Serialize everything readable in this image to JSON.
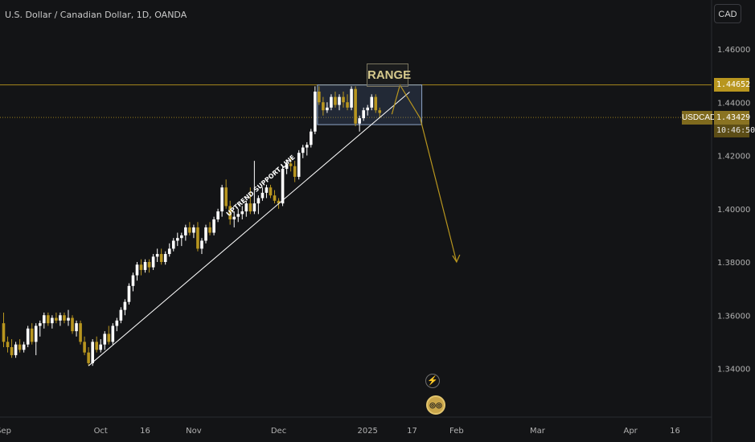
{
  "header": {
    "title": "U.S. Dollar / Canadian Dollar, 1D, OANDA",
    "currency": "CAD"
  },
  "price_labels": {
    "range_top": "1.44652",
    "symbol": "USDCAD",
    "last": "1.43429",
    "countdown": "10:46:50"
  },
  "annotations": {
    "range": "RANGE",
    "support": "UPTREND SUPPORT LINE",
    "event_icon": "lightning-icon",
    "event2_icon": "coins-icon"
  },
  "colors": {
    "background": "#131416",
    "up": "#ffffff",
    "down": "#b8961f",
    "accent": "#b8961f",
    "support_line": "#ffffff",
    "range_box": "#8fa6c8"
  },
  "chart_data": {
    "type": "candlestick",
    "title": "U.S. Dollar / Canadian Dollar, 1D, OANDA",
    "y_ticks": [
      1.34,
      1.36,
      1.38,
      1.4,
      1.42,
      1.44,
      1.46
    ],
    "y_tick_labels": [
      "1.34000",
      "1.36000",
      "1.38000",
      "1.40000",
      "1.42000",
      "1.44000",
      "1.46000"
    ],
    "ylim": [
      1.3225,
      1.478
    ],
    "x_ticks": [
      {
        "label": "Sep",
        "bar": 0
      },
      {
        "label": "Oct",
        "bar": 24
      },
      {
        "label": "16",
        "bar": 35
      },
      {
        "label": "Nov",
        "bar": 47
      },
      {
        "label": "Dec",
        "bar": 68
      },
      {
        "label": "2025",
        "bar": 90
      },
      {
        "label": "17",
        "bar": 101
      },
      {
        "label": "Feb",
        "bar": 112
      },
      {
        "label": "Mar",
        "bar": 132
      },
      {
        "label": "Apr",
        "bar": 155
      },
      {
        "label": "16",
        "bar": 166
      }
    ],
    "candles": [
      [
        1.357,
        1.361,
        1.348,
        1.35
      ],
      [
        1.35,
        1.352,
        1.346,
        1.348
      ],
      [
        1.348,
        1.351,
        1.344,
        1.345
      ],
      [
        1.345,
        1.35,
        1.344,
        1.349
      ],
      [
        1.349,
        1.351,
        1.346,
        1.347
      ],
      [
        1.347,
        1.35,
        1.346,
        1.349
      ],
      [
        1.349,
        1.356,
        1.348,
        1.355
      ],
      [
        1.355,
        1.357,
        1.349,
        1.35
      ],
      [
        1.35,
        1.357,
        1.345,
        1.356
      ],
      [
        1.356,
        1.358,
        1.352,
        1.357
      ],
      [
        1.357,
        1.361,
        1.355,
        1.36
      ],
      [
        1.36,
        1.361,
        1.356,
        1.357
      ],
      [
        1.357,
        1.36,
        1.355,
        1.359
      ],
      [
        1.359,
        1.361,
        1.357,
        1.358
      ],
      [
        1.358,
        1.361,
        1.356,
        1.36
      ],
      [
        1.36,
        1.361,
        1.357,
        1.358
      ],
      [
        1.358,
        1.362,
        1.356,
        1.359
      ],
      [
        1.359,
        1.36,
        1.353,
        1.354
      ],
      [
        1.354,
        1.358,
        1.352,
        1.357
      ],
      [
        1.357,
        1.358,
        1.349,
        1.35
      ],
      [
        1.35,
        1.352,
        1.345,
        1.346
      ],
      [
        1.346,
        1.348,
        1.341,
        1.342
      ],
      [
        1.342,
        1.351,
        1.341,
        1.35
      ],
      [
        1.35,
        1.352,
        1.346,
        1.347
      ],
      [
        1.347,
        1.351,
        1.346,
        1.349
      ],
      [
        1.349,
        1.354,
        1.347,
        1.353
      ],
      [
        1.353,
        1.356,
        1.349,
        1.35
      ],
      [
        1.35,
        1.357,
        1.349,
        1.356
      ],
      [
        1.356,
        1.359,
        1.354,
        1.358
      ],
      [
        1.358,
        1.363,
        1.357,
        1.362
      ],
      [
        1.362,
        1.366,
        1.36,
        1.365
      ],
      [
        1.365,
        1.372,
        1.364,
        1.371
      ],
      [
        1.371,
        1.376,
        1.369,
        1.375
      ],
      [
        1.375,
        1.38,
        1.373,
        1.379
      ],
      [
        1.379,
        1.381,
        1.375,
        1.377
      ],
      [
        1.377,
        1.381,
        1.376,
        1.38
      ],
      [
        1.38,
        1.381,
        1.376,
        1.378
      ],
      [
        1.378,
        1.383,
        1.377,
        1.382
      ],
      [
        1.382,
        1.385,
        1.38,
        1.383
      ],
      [
        1.383,
        1.385,
        1.379,
        1.38
      ],
      [
        1.38,
        1.384,
        1.379,
        1.383
      ],
      [
        1.383,
        1.387,
        1.382,
        1.385
      ],
      [
        1.385,
        1.389,
        1.384,
        1.388
      ],
      [
        1.388,
        1.391,
        1.386,
        1.389
      ],
      [
        1.389,
        1.391,
        1.386,
        1.39
      ],
      [
        1.39,
        1.394,
        1.388,
        1.393
      ],
      [
        1.393,
        1.395,
        1.39,
        1.391
      ],
      [
        1.391,
        1.394,
        1.389,
        1.393
      ],
      [
        1.393,
        1.395,
        1.384,
        1.385
      ],
      [
        1.385,
        1.389,
        1.383,
        1.388
      ],
      [
        1.388,
        1.394,
        1.387,
        1.393
      ],
      [
        1.393,
        1.395,
        1.39,
        1.391
      ],
      [
        1.391,
        1.397,
        1.39,
        1.396
      ],
      [
        1.396,
        1.4,
        1.395,
        1.399
      ],
      [
        1.399,
        1.409,
        1.397,
        1.408
      ],
      [
        1.408,
        1.411,
        1.4,
        1.401
      ],
      [
        1.401,
        1.403,
        1.394,
        1.396
      ],
      [
        1.396,
        1.399,
        1.393,
        1.397
      ],
      [
        1.397,
        1.4,
        1.395,
        1.398
      ],
      [
        1.398,
        1.401,
        1.396,
        1.399
      ],
      [
        1.399,
        1.403,
        1.397,
        1.402
      ],
      [
        1.402,
        1.408,
        1.398,
        1.399
      ],
      [
        1.399,
        1.418,
        1.398,
        1.402
      ],
      [
        1.402,
        1.405,
        1.398,
        1.404
      ],
      [
        1.404,
        1.408,
        1.403,
        1.406
      ],
      [
        1.406,
        1.409,
        1.404,
        1.408
      ],
      [
        1.408,
        1.409,
        1.404,
        1.405
      ],
      [
        1.405,
        1.407,
        1.402,
        1.403
      ],
      [
        1.403,
        1.404,
        1.4,
        1.402
      ],
      [
        1.402,
        1.416,
        1.401,
        1.415
      ],
      [
        1.415,
        1.418,
        1.413,
        1.417
      ],
      [
        1.417,
        1.419,
        1.414,
        1.416
      ],
      [
        1.416,
        1.418,
        1.41,
        1.412
      ],
      [
        1.412,
        1.422,
        1.411,
        1.421
      ],
      [
        1.421,
        1.424,
        1.419,
        1.423
      ],
      [
        1.423,
        1.425,
        1.42,
        1.424
      ],
      [
        1.424,
        1.43,
        1.423,
        1.429
      ],
      [
        1.429,
        1.446,
        1.428,
        1.444
      ],
      [
        1.444,
        1.446,
        1.439,
        1.44
      ],
      [
        1.44,
        1.442,
        1.435,
        1.437
      ],
      [
        1.437,
        1.44,
        1.436,
        1.438
      ],
      [
        1.438,
        1.443,
        1.437,
        1.442
      ],
      [
        1.442,
        1.444,
        1.438,
        1.439
      ],
      [
        1.439,
        1.443,
        1.437,
        1.442
      ],
      [
        1.442,
        1.444,
        1.438,
        1.44
      ],
      [
        1.44,
        1.443,
        1.437,
        1.438
      ],
      [
        1.438,
        1.446,
        1.437,
        1.445
      ],
      [
        1.445,
        1.446,
        1.431,
        1.432
      ],
      [
        1.432,
        1.435,
        1.429,
        1.434
      ],
      [
        1.434,
        1.438,
        1.433,
        1.437
      ],
      [
        1.437,
        1.439,
        1.435,
        1.438
      ],
      [
        1.438,
        1.443,
        1.437,
        1.442
      ],
      [
        1.442,
        1.443,
        1.436,
        1.437
      ],
      [
        1.437,
        1.438,
        1.434,
        1.436
      ]
    ],
    "range_box": {
      "bar_start": 78,
      "bar_end": 103,
      "high": 1.4465,
      "low": 1.4316
    },
    "support_line": {
      "from": {
        "bar": 21,
        "price": 1.341
      },
      "to": {
        "bar": 98,
        "price": 1.444
      }
    },
    "projection": [
      {
        "bar": 96,
        "price": 1.4355
      },
      {
        "bar": 98,
        "price": 1.4465
      },
      {
        "bar": 103,
        "price": 1.434
      },
      {
        "bar": 112,
        "price": 1.38
      }
    ],
    "grid": false
  }
}
